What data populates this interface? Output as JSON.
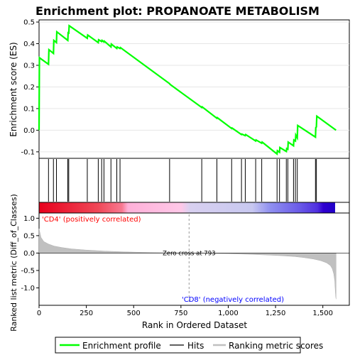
{
  "chart_data": {
    "type": "line",
    "title": "Enrichment plot: PROPANOATE METABOLISM",
    "top_panel": {
      "ylabel": "Enrichment score (ES)",
      "ylim": [
        -0.13,
        0.51
      ],
      "yticks": [
        -0.1,
        0.0,
        0.1,
        0.2,
        0.3,
        0.4,
        0.5
      ],
      "ytick_labels": [
        "-0.1",
        "0.0",
        "0.1",
        "0.2",
        "0.3",
        "0.4",
        "0.5"
      ],
      "series": [
        {
          "name": "Enrichment profile",
          "color": "#00ff00",
          "x": [
            0,
            2,
            50,
            52,
            76,
            78,
            92,
            94,
            152,
            154,
            157,
            159,
            255,
            257,
            313,
            315,
            331,
            333,
            343,
            345,
            380,
            382,
            411,
            413,
            428,
            430,
            690,
            692,
            860,
            862,
            940,
            942,
            1018,
            1020,
            1070,
            1072,
            1090,
            1092,
            1145,
            1147,
            1177,
            1179,
            1258,
            1260,
            1271,
            1273,
            1307,
            1309,
            1315,
            1317,
            1345,
            1347,
            1355,
            1357,
            1365,
            1367,
            1461,
            1463,
            1466,
            1468,
            1570
          ],
          "y": [
            0.0,
            0.335,
            0.305,
            0.372,
            0.355,
            0.415,
            0.405,
            0.455,
            0.415,
            0.455,
            0.445,
            0.483,
            0.425,
            0.44,
            0.405,
            0.418,
            0.41,
            0.415,
            0.408,
            0.412,
            0.385,
            0.398,
            0.378,
            0.385,
            0.378,
            0.382,
            0.215,
            0.212,
            0.105,
            0.108,
            0.055,
            0.058,
            0.008,
            0.01,
            -0.02,
            -0.018,
            -0.025,
            -0.02,
            -0.05,
            -0.045,
            -0.06,
            -0.055,
            -0.11,
            -0.095,
            -0.102,
            -0.08,
            -0.098,
            -0.085,
            -0.088,
            -0.055,
            -0.072,
            -0.045,
            -0.05,
            -0.022,
            -0.035,
            0.022,
            -0.032,
            0.012,
            0.015,
            0.065,
            0.0
          ]
        }
      ]
    },
    "hits": {
      "name": "Hits",
      "positions": [
        50,
        76,
        92,
        152,
        157,
        255,
        313,
        331,
        343,
        380,
        411,
        428,
        690,
        860,
        940,
        1018,
        1070,
        1090,
        1145,
        1177,
        1258,
        1271,
        1307,
        1315,
        1345,
        1355,
        1365,
        1461,
        1466
      ]
    },
    "color_bar": {
      "positive_color": "#ff0000",
      "negative_color": "#0000ff"
    },
    "bottom_panel": {
      "ylabel": "Ranked list metric (Diff_of_Classes)",
      "xlabel": "Rank in Ordered Dataset",
      "ylim": [
        -1.5,
        1.15
      ],
      "yticks": [
        -1.0,
        -0.5,
        0.0,
        0.5,
        1.0
      ],
      "ytick_labels": [
        "-1.0",
        "-0.5",
        "0.0",
        "0.5",
        "1.0"
      ],
      "xlim": [
        0,
        1640
      ],
      "xticks": [
        0,
        250,
        500,
        750,
        1000,
        1250,
        1500
      ],
      "xtick_labels": [
        "0",
        "250",
        "500",
        "750",
        "1,000",
        "1,250",
        "1,500"
      ],
      "zero_cross": 793,
      "zero_cross_label": "Zero cross at 793",
      "positive_label": "'CD4' (positively correlated)",
      "negative_label": "'CD8' (negatively correlated)",
      "metric_profile": {
        "name": "Ranking metric scores",
        "color": "#c0c0c0",
        "x": [
          0,
          10,
          25,
          50,
          80,
          120,
          170,
          250,
          350,
          450,
          550,
          650,
          793,
          900,
          1000,
          1100,
          1200,
          1280,
          1350,
          1400,
          1450,
          1490,
          1520,
          1540,
          1550,
          1558,
          1563,
          1565,
          1568,
          1570
        ],
        "y": [
          0.7,
          0.45,
          0.33,
          0.26,
          0.2,
          0.16,
          0.12,
          0.085,
          0.055,
          0.035,
          0.02,
          0.01,
          0.0,
          -0.01,
          -0.02,
          -0.035,
          -0.055,
          -0.075,
          -0.1,
          -0.13,
          -0.17,
          -0.22,
          -0.28,
          -0.36,
          -0.45,
          -0.6,
          -0.8,
          -1.0,
          -1.25,
          -1.32
        ]
      }
    },
    "legend": {
      "placement": "bottom",
      "items": [
        {
          "label": "Enrichment profile",
          "color": "#00ff00"
        },
        {
          "label": "Hits",
          "color": "#000000"
        },
        {
          "label": "Ranking metric scores",
          "color": "#c0c0c0"
        }
      ]
    }
  }
}
